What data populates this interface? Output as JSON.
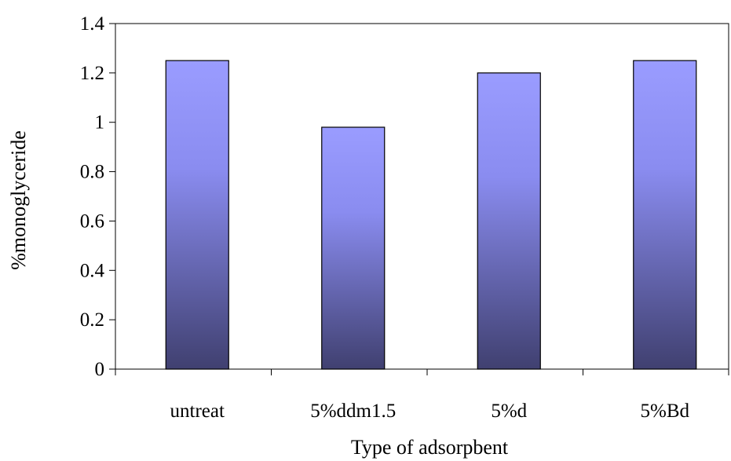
{
  "chart_data": {
    "type": "bar",
    "title": "",
    "xlabel": "Type of adsorpbent",
    "ylabel": "%monoglyceride",
    "categories": [
      "untreat",
      "5%ddm1.5",
      "5%d",
      "5%Bd"
    ],
    "series": [
      {
        "values": [
          1.25,
          0.98,
          1.2,
          1.25
        ]
      }
    ],
    "ylim": [
      0,
      1.4
    ],
    "yticks": [
      "0",
      "0.2",
      "0.4",
      "0.6",
      "0.8",
      "1",
      "1.2",
      "1.4"
    ],
    "grid": false,
    "legend": "none",
    "colors": {
      "bar_top": "#9a9cff",
      "bar_bottom": "#404070",
      "axis": "#000000"
    }
  }
}
